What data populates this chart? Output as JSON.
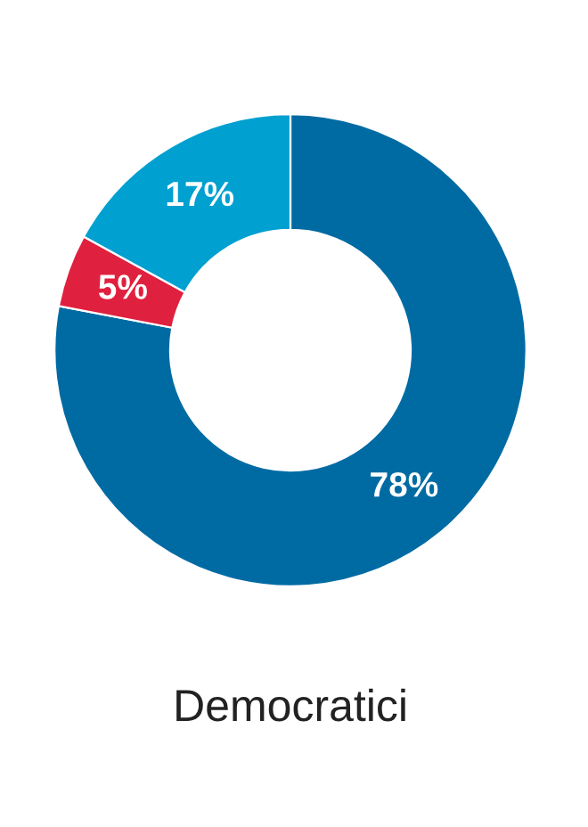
{
  "chart_data": {
    "type": "donut",
    "title": "Democratici",
    "categories": [
      null,
      null,
      null
    ],
    "values": [
      78,
      5,
      17
    ],
    "colors": [
      "#006ba3",
      "#e0203f",
      "#00a0d0"
    ],
    "value_labels": [
      "78%",
      "5%",
      "17%"
    ],
    "legend": false
  }
}
